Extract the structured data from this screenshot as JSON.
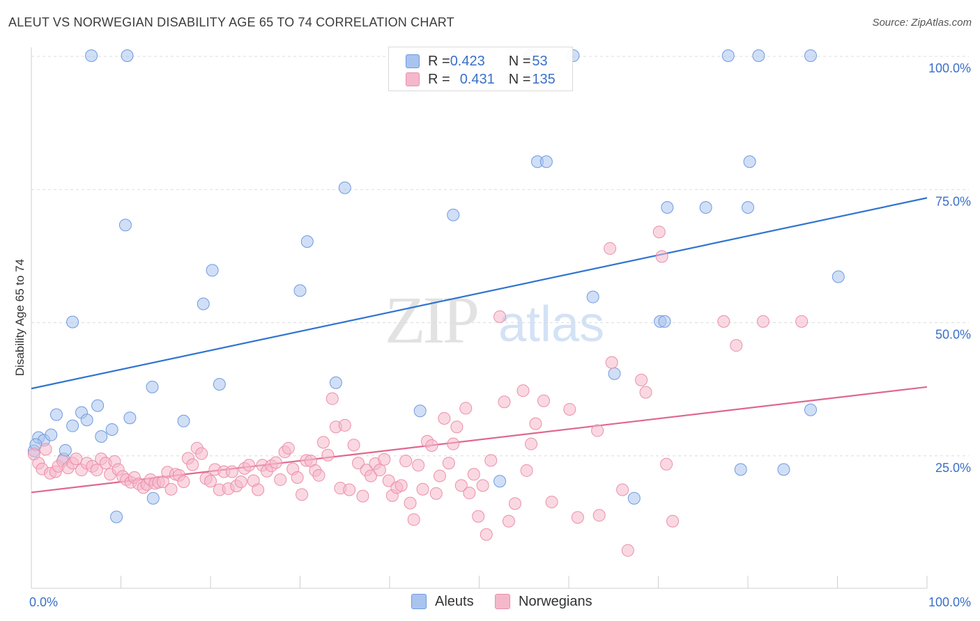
{
  "title": "ALEUT VS NORWEGIAN DISABILITY AGE 65 TO 74 CORRELATION CHART",
  "source": "Source: ZipAtlas.com",
  "watermark": {
    "zip": "ZIP",
    "atlas": "atlas"
  },
  "legend": {
    "rows": [
      {
        "r_label": "R = ",
        "r_value": "0.423",
        "n_label": "N = ",
        "n_value": "53"
      },
      {
        "r_label": "R = ",
        "r_value": "0.431",
        "n_label": "N = ",
        "n_value": "135"
      }
    ]
  },
  "chart_data": {
    "type": "scatter",
    "title": "ALEUT VS NORWEGIAN DISABILITY AGE 65 TO 74 CORRELATION CHART",
    "xlabel": "",
    "ylabel": "Disability Age 65 to 74",
    "xlim": [
      0,
      100
    ],
    "ylim": [
      0,
      105
    ],
    "x_tick_labels": [
      "0.0%",
      "100.0%"
    ],
    "y_ticks": [
      25,
      50,
      75,
      100
    ],
    "y_tick_labels": [
      "25.0%",
      "50.0%",
      "75.0%",
      "100.0%"
    ],
    "grid": true,
    "legend_position": "top-center",
    "series": [
      {
        "name": "Aleuts",
        "color": "#a9c4ee",
        "edge_color": "#6f9ae0",
        "line_color": "#2f74d0",
        "R": 0.423,
        "N": 53,
        "trend": {
          "x": [
            0,
            100
          ],
          "y": [
            37.5,
            73.3
          ]
        },
        "points": [
          [
            0.3,
            25.8
          ],
          [
            0.8,
            28.3
          ],
          [
            1.4,
            27.8
          ],
          [
            2.2,
            28.8
          ],
          [
            2.8,
            32.6
          ],
          [
            3.6,
            24.3
          ],
          [
            3.8,
            25.9
          ],
          [
            4.6,
            30.5
          ],
          [
            4.6,
            50.0
          ],
          [
            5.6,
            33.0
          ],
          [
            6.2,
            31.6
          ],
          [
            7.4,
            34.3
          ],
          [
            7.8,
            28.5
          ],
          [
            9.0,
            29.8
          ],
          [
            9.5,
            13.4
          ],
          [
            10.5,
            68.2
          ],
          [
            11.0,
            32.0
          ],
          [
            13.5,
            37.8
          ],
          [
            13.6,
            16.9
          ],
          [
            17.0,
            31.4
          ],
          [
            19.2,
            53.4
          ],
          [
            20.2,
            59.7
          ],
          [
            21.0,
            38.3
          ],
          [
            30.0,
            55.9
          ],
          [
            30.8,
            65.1
          ],
          [
            34.0,
            38.6
          ],
          [
            35.0,
            75.2
          ],
          [
            43.4,
            33.3
          ],
          [
            47.1,
            70.1
          ],
          [
            52.3,
            20.1
          ],
          [
            56.5,
            80.1
          ],
          [
            57.5,
            80.1
          ],
          [
            62.7,
            54.7
          ],
          [
            65.1,
            40.3
          ],
          [
            67.3,
            16.9
          ],
          [
            70.2,
            50.1
          ],
          [
            70.7,
            50.1
          ],
          [
            71.0,
            71.5
          ],
          [
            75.3,
            71.5
          ],
          [
            80.0,
            71.5
          ],
          [
            79.2,
            22.3
          ],
          [
            80.2,
            80.1
          ],
          [
            84.0,
            22.3
          ],
          [
            87.0,
            33.5
          ],
          [
            90.1,
            58.5
          ],
          [
            6.7,
            100.0
          ],
          [
            10.7,
            100.0
          ],
          [
            55.7,
            100.0
          ],
          [
            60.5,
            100.0
          ],
          [
            77.8,
            100.0
          ],
          [
            81.2,
            100.0
          ],
          [
            87.0,
            100.0
          ],
          [
            0.5,
            27.0
          ]
        ]
      },
      {
        "name": "Norwegians",
        "color": "#f5b8cb",
        "edge_color": "#ea8faa",
        "line_color": "#e0678f",
        "R": 0.431,
        "N": 135,
        "trend": {
          "x": [
            0,
            100
          ],
          "y": [
            18.0,
            37.8
          ]
        },
        "points": [
          [
            0.3,
            25.2
          ],
          [
            0.8,
            23.5
          ],
          [
            1.2,
            22.4
          ],
          [
            1.6,
            26.1
          ],
          [
            2.1,
            21.6
          ],
          [
            2.7,
            21.9
          ],
          [
            3.0,
            22.9
          ],
          [
            3.5,
            23.9
          ],
          [
            4.1,
            22.6
          ],
          [
            4.6,
            23.5
          ],
          [
            5.0,
            24.3
          ],
          [
            5.6,
            22.2
          ],
          [
            6.2,
            23.5
          ],
          [
            6.8,
            22.9
          ],
          [
            7.3,
            22.2
          ],
          [
            7.8,
            24.3
          ],
          [
            8.3,
            23.5
          ],
          [
            8.8,
            21.4
          ],
          [
            9.3,
            23.8
          ],
          [
            9.7,
            22.3
          ],
          [
            10.2,
            21.0
          ],
          [
            10.6,
            20.4
          ],
          [
            11.1,
            19.9
          ],
          [
            11.5,
            20.8
          ],
          [
            12.0,
            19.6
          ],
          [
            12.5,
            18.9
          ],
          [
            12.9,
            19.5
          ],
          [
            13.3,
            20.4
          ],
          [
            13.8,
            19.7
          ],
          [
            14.2,
            19.9
          ],
          [
            14.7,
            20.0
          ],
          [
            15.2,
            21.8
          ],
          [
            15.6,
            18.6
          ],
          [
            16.1,
            21.4
          ],
          [
            16.5,
            21.2
          ],
          [
            17.0,
            20.0
          ],
          [
            17.5,
            24.4
          ],
          [
            18.0,
            23.2
          ],
          [
            18.5,
            26.3
          ],
          [
            19.0,
            25.3
          ],
          [
            19.5,
            20.6
          ],
          [
            20.0,
            20.1
          ],
          [
            20.5,
            22.3
          ],
          [
            21.0,
            18.5
          ],
          [
            21.5,
            21.9
          ],
          [
            22.0,
            18.7
          ],
          [
            22.4,
            21.9
          ],
          [
            22.9,
            19.2
          ],
          [
            23.4,
            20.0
          ],
          [
            23.8,
            22.5
          ],
          [
            24.3,
            23.1
          ],
          [
            24.8,
            20.2
          ],
          [
            25.3,
            18.5
          ],
          [
            25.8,
            23.1
          ],
          [
            26.3,
            22.0
          ],
          [
            26.8,
            23.0
          ],
          [
            27.3,
            23.6
          ],
          [
            27.8,
            20.4
          ],
          [
            28.3,
            25.6
          ],
          [
            28.7,
            26.3
          ],
          [
            29.2,
            22.4
          ],
          [
            29.7,
            20.8
          ],
          [
            30.2,
            17.6
          ],
          [
            30.7,
            24.0
          ],
          [
            31.2,
            23.9
          ],
          [
            31.7,
            22.1
          ],
          [
            32.1,
            21.2
          ],
          [
            32.6,
            27.4
          ],
          [
            33.1,
            25.0
          ],
          [
            33.6,
            35.6
          ],
          [
            34.0,
            30.3
          ],
          [
            34.5,
            18.8
          ],
          [
            35.0,
            30.6
          ],
          [
            35.5,
            18.5
          ],
          [
            36.0,
            26.9
          ],
          [
            36.5,
            23.5
          ],
          [
            37.0,
            17.3
          ],
          [
            37.4,
            22.2
          ],
          [
            37.9,
            21.1
          ],
          [
            38.4,
            23.4
          ],
          [
            38.9,
            22.2
          ],
          [
            39.4,
            24.2
          ],
          [
            39.9,
            20.2
          ],
          [
            40.3,
            17.4
          ],
          [
            40.8,
            18.9
          ],
          [
            41.3,
            19.3
          ],
          [
            41.8,
            23.9
          ],
          [
            42.3,
            16.0
          ],
          [
            42.7,
            12.9
          ],
          [
            43.2,
            23.1
          ],
          [
            43.7,
            18.6
          ],
          [
            44.2,
            27.6
          ],
          [
            44.7,
            26.8
          ],
          [
            45.2,
            17.8
          ],
          [
            45.6,
            21.1
          ],
          [
            46.1,
            31.9
          ],
          [
            46.6,
            23.5
          ],
          [
            47.1,
            27.1
          ],
          [
            47.5,
            30.3
          ],
          [
            48.0,
            19.3
          ],
          [
            48.5,
            33.8
          ],
          [
            48.9,
            17.9
          ],
          [
            49.4,
            21.4
          ],
          [
            49.9,
            13.5
          ],
          [
            50.4,
            19.3
          ],
          [
            50.8,
            10.1
          ],
          [
            51.3,
            24.0
          ],
          [
            52.3,
            51.0
          ],
          [
            52.8,
            35.0
          ],
          [
            53.3,
            12.6
          ],
          [
            54.0,
            15.9
          ],
          [
            54.9,
            37.1
          ],
          [
            55.3,
            22.1
          ],
          [
            55.8,
            27.1
          ],
          [
            56.3,
            30.9
          ],
          [
            57.2,
            35.2
          ],
          [
            58.1,
            16.2
          ],
          [
            60.1,
            33.6
          ],
          [
            61.0,
            13.3
          ],
          [
            63.2,
            29.6
          ],
          [
            63.4,
            13.7
          ],
          [
            64.8,
            42.4
          ],
          [
            66.0,
            18.5
          ],
          [
            66.6,
            7.1
          ],
          [
            68.1,
            39.1
          ],
          [
            68.6,
            36.8
          ],
          [
            70.4,
            62.3
          ],
          [
            70.1,
            66.9
          ],
          [
            70.9,
            23.3
          ],
          [
            71.6,
            12.6
          ],
          [
            77.3,
            50.1
          ],
          [
            78.7,
            45.6
          ],
          [
            81.7,
            50.1
          ],
          [
            86.0,
            50.1
          ],
          [
            64.6,
            63.8
          ]
        ]
      }
    ]
  }
}
